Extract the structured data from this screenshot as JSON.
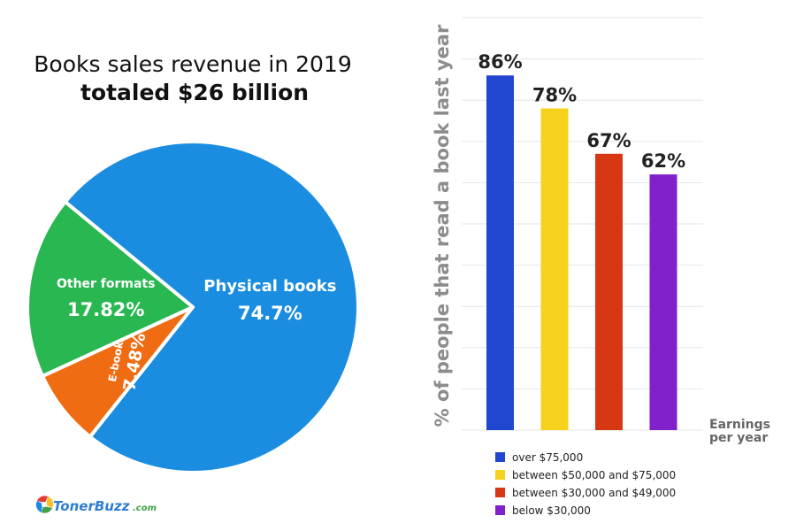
{
  "charts": {
    "pie": {
      "title_line1": "Books sales revenue in 2019",
      "title_line2": "totaled $26 billion"
    },
    "bar": {
      "ylabel": "% of people that read a book last year",
      "xlabel_line1": "Earnings",
      "xlabel_line2": "per year"
    }
  },
  "chart_data": [
    {
      "type": "pie",
      "title": "Books sales revenue in 2019 totaled $26 billion",
      "slices": [
        {
          "label": "Physical books",
          "value": 74.7,
          "display": "74.7%",
          "color": "#1a8de0"
        },
        {
          "label": "E-books",
          "value": 7.48,
          "display": "7.48%",
          "color": "#ef6c12"
        },
        {
          "label": "Other formats",
          "value": 17.82,
          "display": "17.82%",
          "color": "#29b752"
        }
      ]
    },
    {
      "type": "bar",
      "ylabel": "% of people that read a book last year",
      "xlabel": "Earnings per year",
      "ylim": [
        0,
        100
      ],
      "grid": true,
      "legend_position": "bottom",
      "categories": [
        "over $75,000",
        "between $50,000 and $75,000",
        "between $30,000 and $49,000",
        "below $30,000"
      ],
      "values": [
        86,
        78,
        67,
        62
      ],
      "value_labels": [
        "86%",
        "78%",
        "67%",
        "62%"
      ],
      "colors": [
        "#2146cf",
        "#f6d21d",
        "#d63813",
        "#8220cc"
      ]
    }
  ],
  "branding": {
    "logo_text": "TonerBuzz",
    "logo_suffix": ".com"
  }
}
